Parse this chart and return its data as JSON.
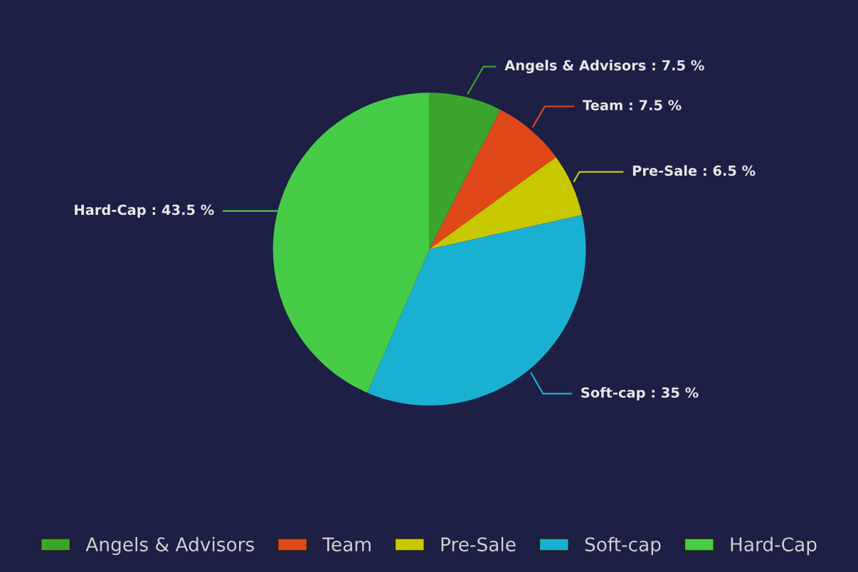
{
  "chart_data": {
    "type": "pie",
    "categories": [
      "Angels & Advisors",
      "Team",
      "Pre-Sale",
      "Soft-cap",
      "Hard-Cap"
    ],
    "values": [
      7.5,
      7.5,
      6.5,
      35,
      43.5
    ],
    "colors": [
      "#3aa52a",
      "#e0481a",
      "#c8c800",
      "#1ab0d2",
      "#46cc46"
    ],
    "value_labels": [
      "Angels & Advisors : 7.5 %",
      "Team : 7.5 %",
      "Pre-Sale : 6.5 %",
      "Soft-cap : 35 %",
      "Hard-Cap : 43.5 %"
    ],
    "legend": "bottom"
  }
}
